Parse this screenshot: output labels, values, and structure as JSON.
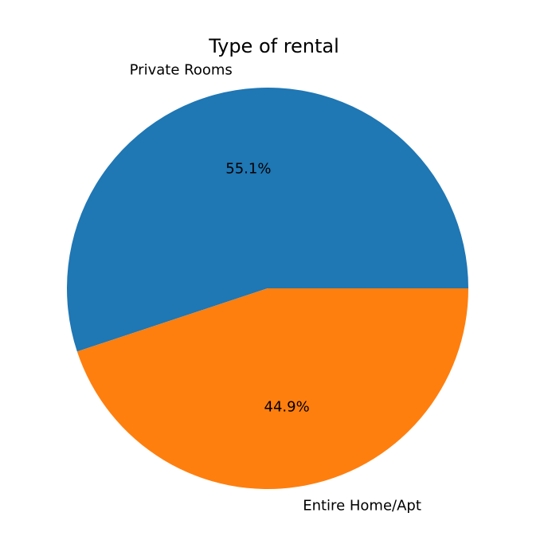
{
  "chart_data": {
    "type": "pie",
    "title": "Type of rental",
    "slices": [
      {
        "label": "Private Rooms",
        "value": 55.1,
        "percent_label": "55.1%",
        "color": "#1f77b4"
      },
      {
        "label": "Entire Home/Apt",
        "value": 44.9,
        "percent_label": "44.9%",
        "color": "#ff7f0e"
      }
    ],
    "start_angle_deg": 0,
    "direction": "counterclockwise",
    "legend": "none"
  }
}
